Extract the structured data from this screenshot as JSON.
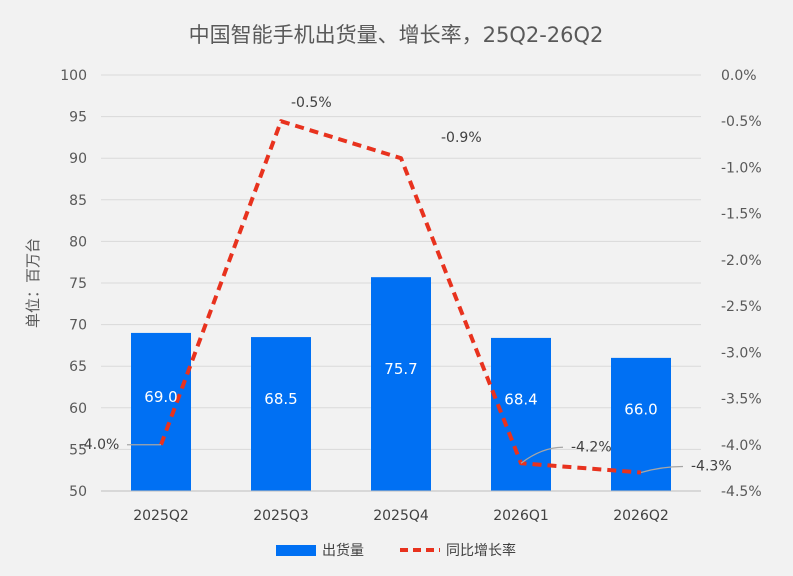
{
  "chart_data": {
    "type": "bar",
    "title": "中国智能手机出货量、增长率，25Q2-26Q2",
    "ylabel": "单位：百万台",
    "categories": [
      "2025Q2",
      "2025Q3",
      "2025Q4",
      "2026Q1",
      "2026Q2"
    ],
    "ylim": [
      50,
      100
    ],
    "y2lim": [
      -4.5,
      0.0
    ],
    "y_ticks": [
      "100",
      "95",
      "90",
      "85",
      "80",
      "75",
      "70",
      "65",
      "60",
      "55",
      "50"
    ],
    "y2_ticks": [
      "0.0%",
      "-0.5%",
      "-1.0%",
      "-1.5%",
      "-2.0%",
      "-2.5%",
      "-3.0%",
      "-3.5%",
      "-4.0%",
      "-4.5%"
    ],
    "grid": true,
    "legend_position": "bottom",
    "series": [
      {
        "name": "出货量",
        "type": "bar",
        "axis": "left",
        "color": "#0070f3",
        "values": [
          69.0,
          68.5,
          75.7,
          68.4,
          66.0
        ],
        "labels": [
          "69.0",
          "68.5",
          "75.7",
          "68.4",
          "66.0"
        ]
      },
      {
        "name": "同比增长率",
        "type": "line",
        "axis": "right",
        "color": "#e8321e",
        "dashed": true,
        "values": [
          -4.0,
          -0.5,
          -0.9,
          -4.2,
          -4.3
        ],
        "labels": [
          "-4.0%",
          "-0.5%",
          "-0.9%",
          "-4.2%",
          "-4.3%"
        ]
      }
    ]
  }
}
